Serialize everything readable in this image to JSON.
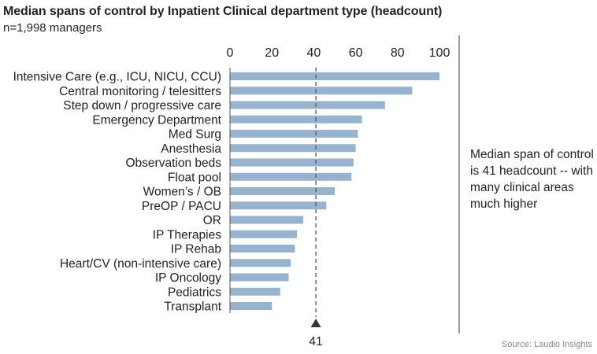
{
  "title": "Median spans of control by Inpatient Clinical department type (headcount)",
  "subtitle": "n=1,998 managers",
  "annotation": "Median span of control is 41 headcount -- with many clinical areas much higher",
  "source": "Source: Laudio Insights",
  "colors": {
    "bar": "#97b3cd",
    "axis": "#555555",
    "median_line": "#555555",
    "divider": "#5b6a8a"
  },
  "chart_data": {
    "type": "bar",
    "orientation": "horizontal",
    "title": "Median spans of control by Inpatient Clinical department type (headcount)",
    "categories": [
      "Intensive Care (e.g., ICU, NICU, CCU)",
      "Central monitoring / telesitters",
      "Step down / progressive care",
      "Emergency Department",
      "Med Surg",
      "Anesthesia",
      "Observation beds",
      "Float pool",
      "Women’s / OB",
      "PreOP / PACU",
      "OR",
      "IP Therapies",
      "IP Rehab",
      "Heart/CV (non-intensive care)",
      "IP Oncology",
      "Pediatrics",
      "Transplant"
    ],
    "values": [
      100,
      87,
      74,
      63,
      61,
      60,
      59,
      58,
      50,
      46,
      35,
      32,
      31,
      29,
      28,
      24,
      20
    ],
    "xlim": [
      0,
      100
    ],
    "xticks": [
      0,
      20,
      40,
      60,
      80,
      100
    ],
    "x_axis_position": "top",
    "median": {
      "value": 41,
      "label": "41"
    },
    "grid": false,
    "legend": "none"
  }
}
